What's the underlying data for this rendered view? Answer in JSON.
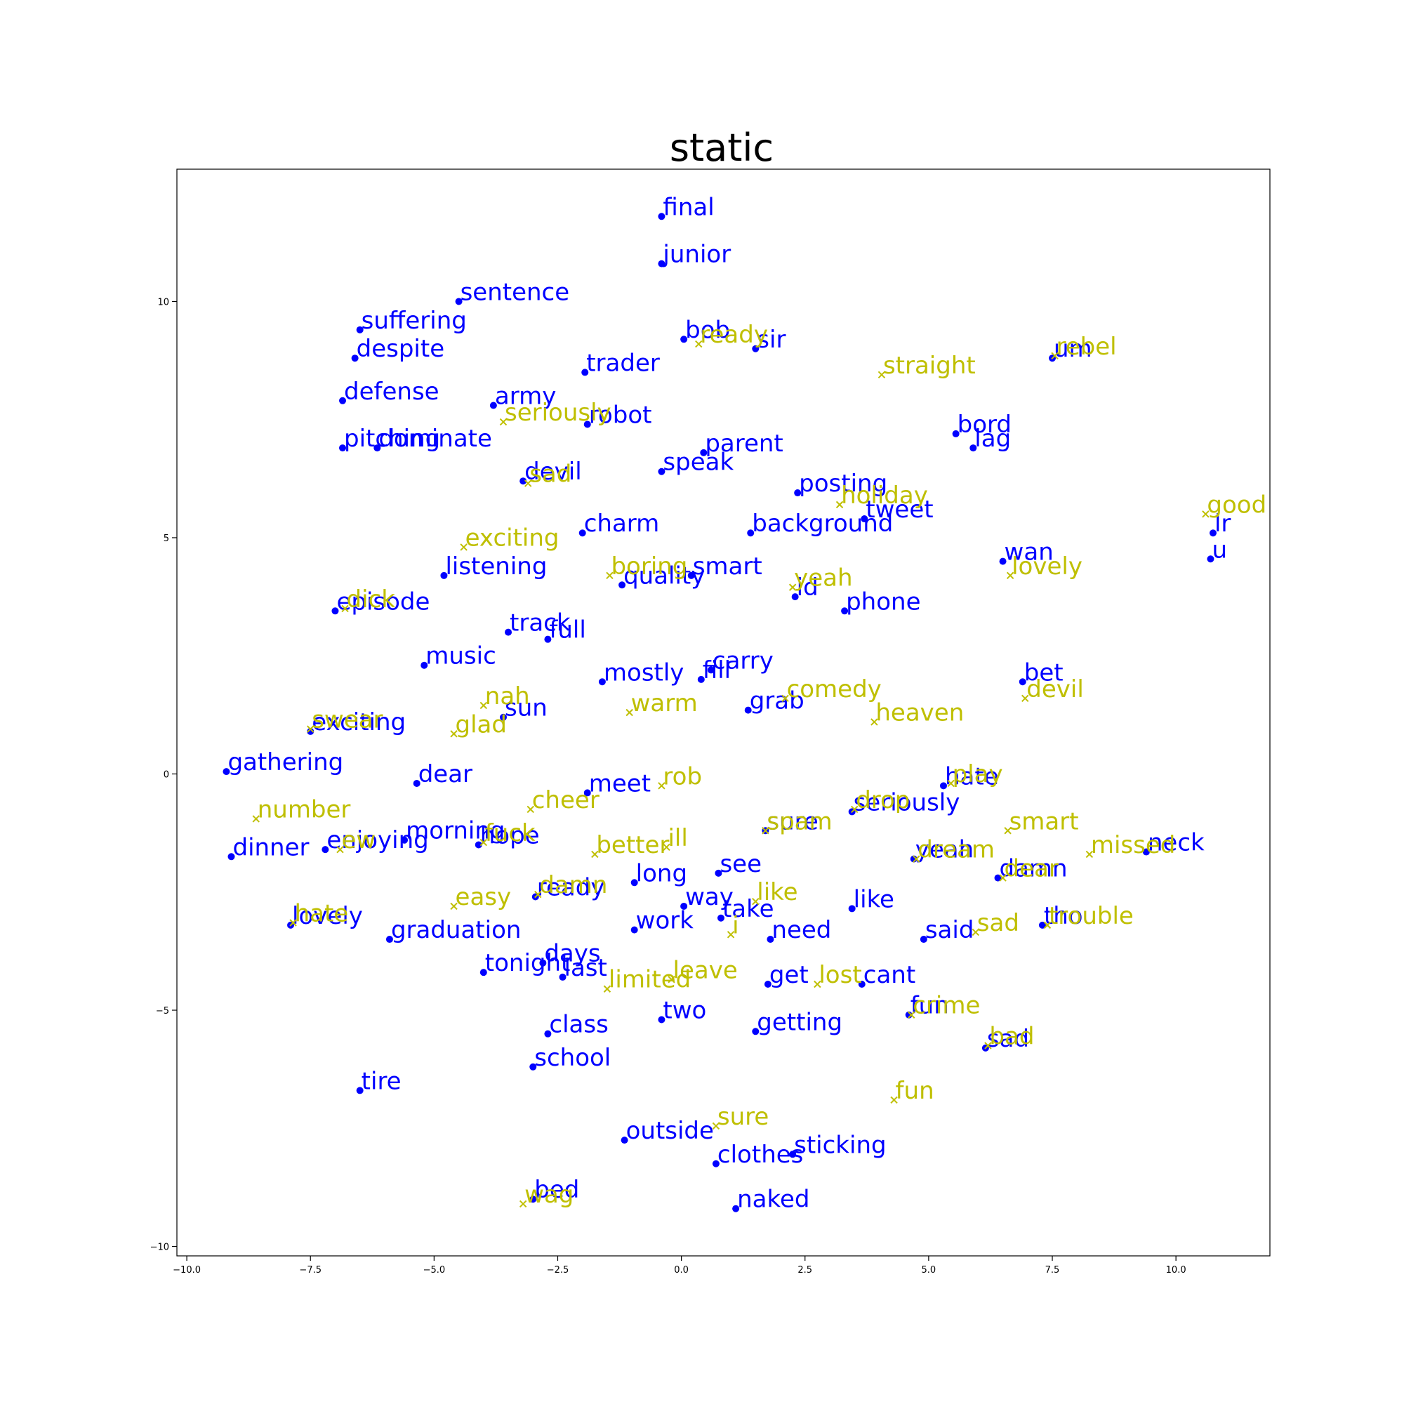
{
  "chart_data": {
    "type": "scatter",
    "title": "static",
    "xlabel": "",
    "ylabel": "",
    "xlim": [
      -10.2,
      11.9
    ],
    "ylim": [
      -10.2,
      12.8
    ],
    "xticks": [
      -10.0,
      -7.5,
      -5.0,
      -2.5,
      0.0,
      2.5,
      5.0,
      7.5,
      10.0
    ],
    "xtick_labels": [
      "−10.0",
      "−7.5",
      "−5.0",
      "−2.5",
      "0.0",
      "2.5",
      "5.0",
      "7.5",
      "10.0"
    ],
    "yticks": [
      -10,
      -5,
      0,
      5,
      10
    ],
    "ytick_labels": [
      "−10",
      "−5",
      "0",
      "5",
      "10"
    ],
    "grid": false,
    "series": [
      {
        "color": "#0000ff",
        "marker": "circle",
        "points": [
          {
            "x": -0.4,
            "y": 11.8,
            "label": "final"
          },
          {
            "x": -0.4,
            "y": 10.8,
            "label": "junior"
          },
          {
            "x": -4.5,
            "y": 10.0,
            "label": "sentence"
          },
          {
            "x": -6.5,
            "y": 9.4,
            "label": "suffering"
          },
          {
            "x": -6.6,
            "y": 8.8,
            "label": "despite"
          },
          {
            "x": 0.05,
            "y": 9.2,
            "label": "bob"
          },
          {
            "x": 1.5,
            "y": 9.0,
            "label": "sir"
          },
          {
            "x": 7.5,
            "y": 8.8,
            "label": "um"
          },
          {
            "x": -1.95,
            "y": 8.5,
            "label": "trader"
          },
          {
            "x": -6.85,
            "y": 7.9,
            "label": "defense"
          },
          {
            "x": -3.8,
            "y": 7.8,
            "label": "army"
          },
          {
            "x": -1.9,
            "y": 7.4,
            "label": "robot"
          },
          {
            "x": -6.85,
            "y": 6.9,
            "label": "pitching"
          },
          {
            "x": -6.15,
            "y": 6.9,
            "label": "dominate"
          },
          {
            "x": 5.55,
            "y": 7.2,
            "label": "bord"
          },
          {
            "x": 5.9,
            "y": 6.9,
            "label": "lag"
          },
          {
            "x": 0.45,
            "y": 6.8,
            "label": "parent"
          },
          {
            "x": -0.4,
            "y": 6.4,
            "label": "speak"
          },
          {
            "x": -3.2,
            "y": 6.2,
            "label": "devil"
          },
          {
            "x": 2.35,
            "y": 5.95,
            "label": "posting"
          },
          {
            "x": 3.7,
            "y": 5.4,
            "label": "tweet"
          },
          {
            "x": -2.0,
            "y": 5.1,
            "label": "charm"
          },
          {
            "x": 1.4,
            "y": 5.1,
            "label": "background"
          },
          {
            "x": 10.75,
            "y": 5.1,
            "label": "lr"
          },
          {
            "x": 10.7,
            "y": 4.55,
            "label": "u"
          },
          {
            "x": 6.5,
            "y": 4.5,
            "label": "wan"
          },
          {
            "x": -4.8,
            "y": 4.2,
            "label": "listening"
          },
          {
            "x": -1.2,
            "y": 4.0,
            "label": "quality"
          },
          {
            "x": 0.2,
            "y": 4.2,
            "label": "smart"
          },
          {
            "x": 2.3,
            "y": 3.75,
            "label": "id"
          },
          {
            "x": -7.0,
            "y": 3.45,
            "label": "episode"
          },
          {
            "x": 3.3,
            "y": 3.45,
            "label": "phone"
          },
          {
            "x": -3.5,
            "y": 3.0,
            "label": "track"
          },
          {
            "x": -2.7,
            "y": 2.85,
            "label": "full"
          },
          {
            "x": -5.2,
            "y": 2.3,
            "label": "music"
          },
          {
            "x": 0.6,
            "y": 2.2,
            "label": "carry"
          },
          {
            "x": -1.6,
            "y": 1.95,
            "label": "mostly"
          },
          {
            "x": 0.4,
            "y": 2.0,
            "label": "fill"
          },
          {
            "x": 6.9,
            "y": 1.95,
            "label": "bet"
          },
          {
            "x": 1.35,
            "y": 1.35,
            "label": "grab"
          },
          {
            "x": -3.6,
            "y": 1.2,
            "label": "sun"
          },
          {
            "x": -7.5,
            "y": 0.9,
            "label": "exciting"
          },
          {
            "x": -9.2,
            "y": 0.05,
            "label": "gathering"
          },
          {
            "x": -5.35,
            "y": -0.2,
            "label": "dear"
          },
          {
            "x": -1.9,
            "y": -0.4,
            "label": "meet"
          },
          {
            "x": 5.3,
            "y": -0.25,
            "label": "hate"
          },
          {
            "x": 3.45,
            "y": -0.8,
            "label": "seriously"
          },
          {
            "x": -5.6,
            "y": -1.4,
            "label": "morning"
          },
          {
            "x": -7.2,
            "y": -1.6,
            "label": "enjoying"
          },
          {
            "x": -4.1,
            "y": -1.5,
            "label": "hope"
          },
          {
            "x": 1.7,
            "y": -1.2,
            "label": "sure"
          },
          {
            "x": -9.1,
            "y": -1.75,
            "label": "dinner"
          },
          {
            "x": 9.4,
            "y": -1.65,
            "label": "neck"
          },
          {
            "x": 4.7,
            "y": -1.8,
            "label": "yeah"
          },
          {
            "x": 0.75,
            "y": -2.1,
            "label": "see"
          },
          {
            "x": -0.95,
            "y": -2.3,
            "label": "long"
          },
          {
            "x": 6.4,
            "y": -2.2,
            "label": "damn"
          },
          {
            "x": -2.95,
            "y": -2.6,
            "label": "ready"
          },
          {
            "x": 0.05,
            "y": -2.8,
            "label": "way"
          },
          {
            "x": 3.45,
            "y": -2.85,
            "label": "like"
          },
          {
            "x": 0.8,
            "y": -3.05,
            "label": "take"
          },
          {
            "x": -7.9,
            "y": -3.2,
            "label": "lovely"
          },
          {
            "x": 7.3,
            "y": -3.2,
            "label": "tho"
          },
          {
            "x": -0.95,
            "y": -3.3,
            "label": "work"
          },
          {
            "x": 4.9,
            "y": -3.5,
            "label": "said"
          },
          {
            "x": -5.9,
            "y": -3.5,
            "label": "graduation"
          },
          {
            "x": 1.8,
            "y": -3.5,
            "label": "need"
          },
          {
            "x": -2.8,
            "y": -4.0,
            "label": "days"
          },
          {
            "x": -4.0,
            "y": -4.2,
            "label": "tonight"
          },
          {
            "x": -2.4,
            "y": -4.3,
            "label": "last"
          },
          {
            "x": 1.75,
            "y": -4.45,
            "label": "get"
          },
          {
            "x": 3.65,
            "y": -4.45,
            "label": "cant"
          },
          {
            "x": 4.6,
            "y": -5.1,
            "label": "fun"
          },
          {
            "x": -0.4,
            "y": -5.2,
            "label": "two"
          },
          {
            "x": -2.7,
            "y": -5.5,
            "label": "class"
          },
          {
            "x": 1.5,
            "y": -5.45,
            "label": "getting"
          },
          {
            "x": 6.15,
            "y": -5.8,
            "label": "sad"
          },
          {
            "x": -3.0,
            "y": -6.2,
            "label": "school"
          },
          {
            "x": -6.5,
            "y": -6.7,
            "label": "tire"
          },
          {
            "x": -1.15,
            "y": -7.75,
            "label": "outside"
          },
          {
            "x": 2.25,
            "y": -8.05,
            "label": "sticking"
          },
          {
            "x": 0.7,
            "y": -8.25,
            "label": "clothes"
          },
          {
            "x": -3.0,
            "y": -9.0,
            "label": "bed"
          },
          {
            "x": 1.1,
            "y": -9.2,
            "label": "naked"
          }
        ]
      },
      {
        "color": "#bfbf00",
        "marker": "x",
        "points": [
          {
            "x": 0.35,
            "y": 9.1,
            "label": "ready"
          },
          {
            "x": 7.55,
            "y": 8.85,
            "label": "rebel"
          },
          {
            "x": 4.05,
            "y": 8.45,
            "label": "straight"
          },
          {
            "x": -3.6,
            "y": 7.45,
            "label": "seriously"
          },
          {
            "x": -3.1,
            "y": 6.15,
            "label": "sad"
          },
          {
            "x": 3.2,
            "y": 5.7,
            "label": "holiday"
          },
          {
            "x": 10.6,
            "y": 5.5,
            "label": "good"
          },
          {
            "x": -4.4,
            "y": 4.8,
            "label": "exciting"
          },
          {
            "x": -1.45,
            "y": 4.2,
            "label": "boring"
          },
          {
            "x": 6.65,
            "y": 4.2,
            "label": "lovely"
          },
          {
            "x": 2.25,
            "y": 3.95,
            "label": "yeah"
          },
          {
            "x": -6.8,
            "y": 3.5,
            "label": "dick"
          },
          {
            "x": 2.1,
            "y": 1.6,
            "label": "comedy"
          },
          {
            "x": -4.0,
            "y": 1.45,
            "label": "nah"
          },
          {
            "x": -1.05,
            "y": 1.3,
            "label": "warm"
          },
          {
            "x": 6.95,
            "y": 1.6,
            "label": "devil"
          },
          {
            "x": 3.9,
            "y": 1.1,
            "label": "heaven"
          },
          {
            "x": -7.5,
            "y": 0.95,
            "label": "swear"
          },
          {
            "x": -4.6,
            "y": 0.85,
            "label": "glad"
          },
          {
            "x": -0.4,
            "y": -0.25,
            "label": "rob"
          },
          {
            "x": 5.45,
            "y": -0.2,
            "label": "play"
          },
          {
            "x": -3.05,
            "y": -0.75,
            "label": "cheer"
          },
          {
            "x": 3.5,
            "y": -0.75,
            "label": "drop"
          },
          {
            "x": -8.6,
            "y": -0.95,
            "label": "number"
          },
          {
            "x": 1.7,
            "y": -1.2,
            "label": "spam"
          },
          {
            "x": 6.6,
            "y": -1.2,
            "label": "smart"
          },
          {
            "x": -6.9,
            "y": -1.6,
            "label": "ew"
          },
          {
            "x": -4.0,
            "y": -1.45,
            "label": "fuck"
          },
          {
            "x": -1.75,
            "y": -1.7,
            "label": "better"
          },
          {
            "x": 8.25,
            "y": -1.7,
            "label": "missed"
          },
          {
            "x": 4.75,
            "y": -1.8,
            "label": "dream"
          },
          {
            "x": -0.3,
            "y": -1.55,
            "label": "ill"
          },
          {
            "x": 6.5,
            "y": -2.2,
            "label": "dear"
          },
          {
            "x": -2.9,
            "y": -2.55,
            "label": "damn"
          },
          {
            "x": 1.5,
            "y": -2.7,
            "label": "like"
          },
          {
            "x": -4.6,
            "y": -2.8,
            "label": "easy"
          },
          {
            "x": -7.85,
            "y": -3.15,
            "label": "hate"
          },
          {
            "x": 1.0,
            "y": -3.4,
            "label": "i"
          },
          {
            "x": 5.95,
            "y": -3.35,
            "label": "sad"
          },
          {
            "x": 7.4,
            "y": -3.2,
            "label": "trouble"
          },
          {
            "x": -0.2,
            "y": -4.35,
            "label": "leave"
          },
          {
            "x": 2.75,
            "y": -4.45,
            "label": "lost"
          },
          {
            "x": -1.5,
            "y": -4.55,
            "label": "limited"
          },
          {
            "x": 4.65,
            "y": -5.1,
            "label": "crime"
          },
          {
            "x": 6.2,
            "y": -5.75,
            "label": "bad"
          },
          {
            "x": 4.3,
            "y": -6.9,
            "label": "fun"
          },
          {
            "x": 0.7,
            "y": -7.45,
            "label": "sure"
          },
          {
            "x": -3.2,
            "y": -9.1,
            "label": "wag"
          }
        ]
      }
    ]
  }
}
